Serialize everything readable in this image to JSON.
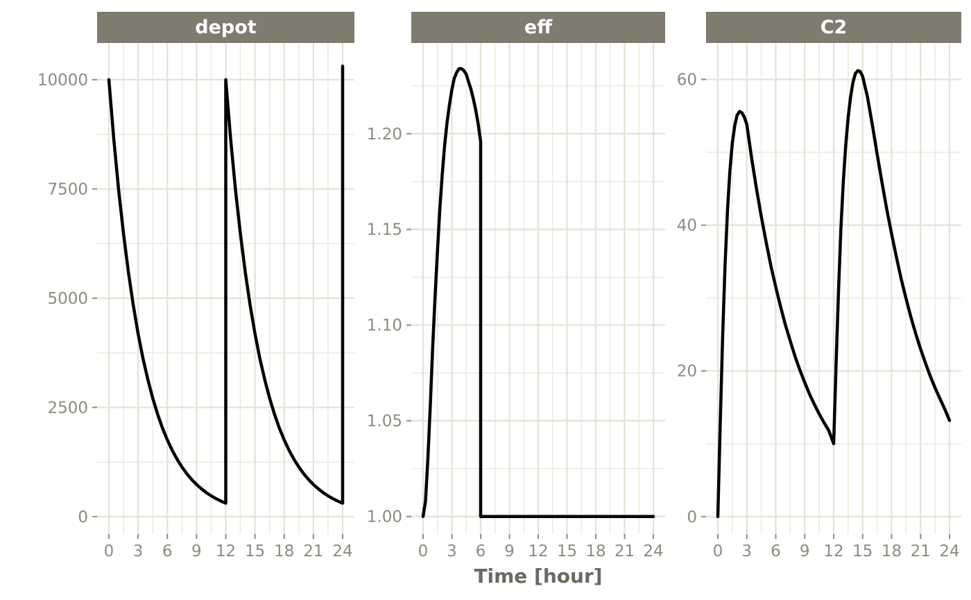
{
  "chart_data": {
    "type": "line",
    "xlabel": "Time [hour]",
    "x_range": [
      0,
      24
    ],
    "x_major_ticks": [
      0,
      3,
      6,
      9,
      12,
      15,
      18,
      21,
      24
    ],
    "x_minor_ticks": [
      1.5,
      4.5,
      7.5,
      10.5,
      13.5,
      16.5,
      19.5,
      22.5
    ],
    "legend": "none",
    "grid": "on",
    "facets": [
      {
        "title": "depot",
        "ylim": [
          -400,
          10840
        ],
        "y_major_ticks": [
          0,
          2500,
          5000,
          7500,
          10000
        ],
        "y_tick_labels": [
          "0",
          "2500",
          "5000",
          "7500",
          "10000"
        ],
        "y_minor_ticks": [
          1250,
          3750,
          6250,
          8750
        ],
        "points": [
          [
            0,
            10000
          ],
          [
            0.5,
            8650
          ],
          [
            1,
            7483
          ],
          [
            1.5,
            6473
          ],
          [
            2,
            5599
          ],
          [
            2.5,
            4843
          ],
          [
            3,
            4190
          ],
          [
            3.5,
            3624
          ],
          [
            4,
            3135
          ],
          [
            4.5,
            2712
          ],
          [
            5,
            2346
          ],
          [
            5.5,
            2029
          ],
          [
            6,
            1755
          ],
          [
            6.5,
            1518
          ],
          [
            7,
            1313
          ],
          [
            7.5,
            1136
          ],
          [
            8,
            983
          ],
          [
            8.5,
            850
          ],
          [
            9,
            735
          ],
          [
            9.5,
            636
          ],
          [
            10,
            550
          ],
          [
            10.5,
            476
          ],
          [
            11,
            412
          ],
          [
            11.5,
            356
          ],
          [
            12,
            308
          ],
          [
            12,
            10000
          ],
          [
            12.5,
            8650
          ],
          [
            13,
            7483
          ],
          [
            13.5,
            6473
          ],
          [
            14,
            5599
          ],
          [
            14.5,
            4843
          ],
          [
            15,
            4190
          ],
          [
            15.5,
            3624
          ],
          [
            16,
            3135
          ],
          [
            16.5,
            2712
          ],
          [
            17,
            2346
          ],
          [
            17.5,
            2029
          ],
          [
            18,
            1755
          ],
          [
            18.5,
            1518
          ],
          [
            19,
            1313
          ],
          [
            19.5,
            1136
          ],
          [
            20,
            983
          ],
          [
            20.5,
            850
          ],
          [
            21,
            735
          ],
          [
            21.5,
            636
          ],
          [
            22,
            550
          ],
          [
            22.5,
            476
          ],
          [
            23,
            412
          ],
          [
            23.5,
            356
          ],
          [
            24,
            308
          ],
          [
            24,
            10310
          ]
        ]
      },
      {
        "title": "eff",
        "ylim": [
          0.9908,
          1.2474
        ],
        "y_major_ticks": [
          1.0,
          1.05,
          1.1,
          1.15,
          1.2
        ],
        "y_tick_labels": [
          "1.00",
          "1.05",
          "1.10",
          "1.15",
          "1.20"
        ],
        "y_minor_ticks": [
          1.025,
          1.075,
          1.125,
          1.175,
          1.225
        ],
        "points": [
          [
            0,
            1.0
          ],
          [
            0.25,
            1.008
          ],
          [
            0.5,
            1.03
          ],
          [
            0.75,
            1.058
          ],
          [
            1,
            1.088
          ],
          [
            1.25,
            1.115
          ],
          [
            1.5,
            1.139
          ],
          [
            1.75,
            1.161
          ],
          [
            2,
            1.179
          ],
          [
            2.25,
            1.194
          ],
          [
            2.5,
            1.206
          ],
          [
            2.75,
            1.215
          ],
          [
            3,
            1.223
          ],
          [
            3.25,
            1.229
          ],
          [
            3.5,
            1.232
          ],
          [
            3.75,
            1.234
          ],
          [
            4,
            1.234
          ],
          [
            4.25,
            1.233
          ],
          [
            4.5,
            1.231
          ],
          [
            4.75,
            1.227
          ],
          [
            5,
            1.223
          ],
          [
            5.25,
            1.218
          ],
          [
            5.5,
            1.212
          ],
          [
            5.75,
            1.205
          ],
          [
            6,
            1.196
          ],
          [
            6,
            1.0
          ],
          [
            7,
            1.0
          ],
          [
            8,
            1.0
          ],
          [
            10,
            1.0
          ],
          [
            12,
            1.0
          ],
          [
            14,
            1.0
          ],
          [
            16,
            1.0
          ],
          [
            18,
            1.0
          ],
          [
            20,
            1.0
          ],
          [
            22,
            1.0
          ],
          [
            24,
            1.0
          ]
        ]
      },
      {
        "title": "C2",
        "ylim": [
          -2.4,
          65.0
        ],
        "y_major_ticks": [
          0,
          20,
          40,
          60
        ],
        "y_tick_labels": [
          "0",
          "20",
          "40",
          "60"
        ],
        "y_minor_ticks": [
          10,
          30,
          50
        ],
        "points": [
          [
            0,
            0
          ],
          [
            0.25,
            13
          ],
          [
            0.5,
            25
          ],
          [
            0.75,
            34.5
          ],
          [
            1,
            42
          ],
          [
            1.25,
            47.5
          ],
          [
            1.5,
            51.3
          ],
          [
            1.75,
            53.7
          ],
          [
            2,
            55.1
          ],
          [
            2.25,
            55.6
          ],
          [
            2.5,
            55.4
          ],
          [
            2.75,
            54.8
          ],
          [
            3,
            53.8
          ],
          [
            3.5,
            49.2
          ],
          [
            4,
            45.0
          ],
          [
            4.5,
            41.2
          ],
          [
            5,
            37.7
          ],
          [
            5.5,
            34.4
          ],
          [
            6,
            31.5
          ],
          [
            6.5,
            28.8
          ],
          [
            7,
            26.3
          ],
          [
            7.5,
            24.1
          ],
          [
            8,
            22.0
          ],
          [
            8.5,
            20.1
          ],
          [
            9,
            18.4
          ],
          [
            9.5,
            16.8
          ],
          [
            10,
            15.4
          ],
          [
            10.5,
            14.1
          ],
          [
            11,
            12.9
          ],
          [
            11.5,
            11.8
          ],
          [
            12,
            10.0
          ],
          [
            12.25,
            21
          ],
          [
            12.5,
            31
          ],
          [
            12.75,
            39.5
          ],
          [
            13,
            46
          ],
          [
            13.25,
            51
          ],
          [
            13.5,
            54.8
          ],
          [
            13.75,
            57.6
          ],
          [
            14,
            59.6
          ],
          [
            14.25,
            60.8
          ],
          [
            14.5,
            61.2
          ],
          [
            14.75,
            61.1
          ],
          [
            15,
            60.4
          ],
          [
            15.5,
            57.6
          ],
          [
            16,
            53.8
          ],
          [
            16.5,
            49.8
          ],
          [
            17,
            45.9
          ],
          [
            17.5,
            42.2
          ],
          [
            18,
            38.8
          ],
          [
            18.5,
            35.6
          ],
          [
            19,
            32.6
          ],
          [
            19.5,
            29.9
          ],
          [
            20,
            27.4
          ],
          [
            20.5,
            25.1
          ],
          [
            21,
            23.0
          ],
          [
            21.5,
            21.1
          ],
          [
            22,
            19.3
          ],
          [
            22.5,
            17.7
          ],
          [
            23,
            16.2
          ],
          [
            23.5,
            14.8
          ],
          [
            24,
            13.2
          ]
        ]
      }
    ],
    "style": {
      "background": "#ffffff",
      "line_color": "#000000",
      "line_width": 4.5,
      "grid_major_color": "#e5e2d6",
      "grid_minor_color": "#edeae0",
      "strip_bg": "#7f7b6f",
      "strip_text_color": "#ffffff",
      "axis_text_color": "#8f8a7e",
      "axis_title_color": "#6d6962",
      "tick_color": "#8f8a7e"
    }
  }
}
